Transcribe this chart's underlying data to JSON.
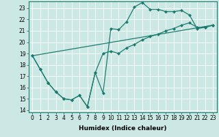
{
  "xlabel": "Humidex (Indice chaleur)",
  "bg_color": "#cce8e4",
  "line_color": "#1a7a6e",
  "grid_color": "#ffffff",
  "xlim": [
    -0.5,
    23.5
  ],
  "ylim": [
    13.8,
    23.6
  ],
  "yticks": [
    14,
    15,
    16,
    17,
    18,
    19,
    20,
    21,
    22,
    23
  ],
  "xticks": [
    0,
    1,
    2,
    3,
    4,
    5,
    6,
    7,
    8,
    9,
    10,
    11,
    12,
    13,
    14,
    15,
    16,
    17,
    18,
    19,
    20,
    21,
    22,
    23
  ],
  "series1_x": [
    0,
    1,
    2,
    3,
    4,
    5,
    6,
    7,
    8,
    9,
    10,
    11,
    12,
    13,
    14,
    15,
    16,
    17,
    18,
    19,
    20,
    21,
    22,
    23
  ],
  "series1_y": [
    18.8,
    17.6,
    16.4,
    15.6,
    15.0,
    14.9,
    15.3,
    14.3,
    17.3,
    15.5,
    21.2,
    21.1,
    21.8,
    23.1,
    23.5,
    22.9,
    22.9,
    22.7,
    22.7,
    22.8,
    22.4,
    21.2,
    21.3,
    21.5
  ],
  "series2_x": [
    0,
    1,
    2,
    3,
    4,
    5,
    6,
    7,
    8,
    9,
    10,
    11,
    12,
    13,
    14,
    15,
    16,
    17,
    18,
    19,
    20,
    21,
    22,
    23
  ],
  "series2_y": [
    18.8,
    17.6,
    16.4,
    15.6,
    15.0,
    14.9,
    15.3,
    14.3,
    17.3,
    19.0,
    19.2,
    19.0,
    19.5,
    19.8,
    20.2,
    20.5,
    20.7,
    21.0,
    21.2,
    21.5,
    21.7,
    21.3,
    21.3,
    21.5
  ],
  "series3_x": [
    0,
    23
  ],
  "series3_y": [
    18.8,
    21.5
  ],
  "xlabel_fontsize": 6.5,
  "tick_fontsize": 5.5
}
